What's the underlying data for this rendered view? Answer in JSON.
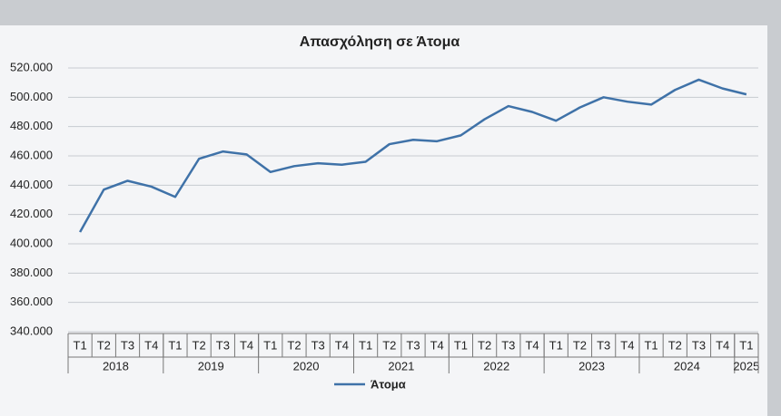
{
  "chart_data": {
    "type": "line",
    "title": "Απασχόληση σε Άτομα",
    "categories": [
      "T1",
      "T2",
      "T3",
      "T4",
      "T1",
      "T2",
      "T3",
      "T4",
      "T1",
      "T2",
      "T3",
      "T4",
      "T1",
      "T2",
      "T3",
      "T4",
      "T1",
      "T2",
      "T3",
      "T4",
      "T1",
      "T2",
      "T3",
      "T4",
      "T1",
      "T2",
      "T3",
      "T4",
      "T1"
    ],
    "years": [
      "2018",
      "2019",
      "2020",
      "2021",
      "2022",
      "2023",
      "2024",
      "2025"
    ],
    "series": [
      {
        "name": "Άτομα",
        "color": "#3f72a8",
        "values": [
          408000,
          437000,
          443000,
          439000,
          432000,
          458000,
          463000,
          461000,
          449000,
          453000,
          455000,
          454000,
          456000,
          468000,
          471000,
          470000,
          474000,
          485000,
          494000,
          490000,
          484000,
          493000,
          500000,
          497000,
          495000,
          505000,
          512000,
          506000,
          502000
        ]
      }
    ],
    "ylim": [
      340000,
      520000
    ],
    "yticks": [
      {
        "value": 340000,
        "label": "340.000"
      },
      {
        "value": 360000,
        "label": "360.000"
      },
      {
        "value": 380000,
        "label": "380.000"
      },
      {
        "value": 400000,
        "label": "400.000"
      },
      {
        "value": 420000,
        "label": "420.000"
      },
      {
        "value": 440000,
        "label": "440.000"
      },
      {
        "value": 460000,
        "label": "460.000"
      },
      {
        "value": 480000,
        "label": "480.000"
      },
      {
        "value": 500000,
        "label": "500.000"
      },
      {
        "value": 520000,
        "label": "520.000"
      }
    ],
    "grid": true
  }
}
